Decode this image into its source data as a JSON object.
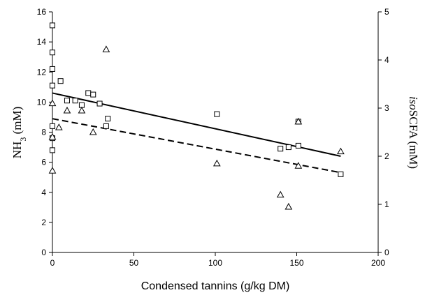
{
  "chart_data": {
    "type": "scatter",
    "xlabel": "Condensed tannins (g/kg DM)",
    "ylabel": {
      "main": "NH",
      "sub": "3",
      "rest": " (mM)"
    },
    "y2label": {
      "italic": "iso",
      "rest": "SCFA (mM)"
    },
    "xlim": [
      0,
      200
    ],
    "ylim": [
      0,
      16
    ],
    "y2lim": [
      0,
      5
    ],
    "xticks": [
      0,
      50,
      100,
      150,
      200
    ],
    "yticks": [
      0,
      2,
      4,
      6,
      8,
      10,
      12,
      14,
      16
    ],
    "y2ticks": [
      0,
      1,
      2,
      3,
      4,
      5
    ],
    "grid": false,
    "series": [
      {
        "marker": "square",
        "axis": "left",
        "points": [
          [
            0,
            15.1
          ],
          [
            0,
            13.3
          ],
          [
            0,
            12.2
          ],
          [
            0,
            11.1
          ],
          [
            0,
            8.4
          ],
          [
            0,
            7.6
          ],
          [
            0,
            6.8
          ],
          [
            5,
            11.4
          ],
          [
            9,
            10.1
          ],
          [
            14,
            10.1
          ],
          [
            18,
            9.8
          ],
          [
            22,
            10.6
          ],
          [
            25,
            10.5
          ],
          [
            29,
            9.9
          ],
          [
            33,
            8.4
          ],
          [
            34,
            8.9
          ],
          [
            101,
            9.2
          ],
          [
            140,
            6.9
          ],
          [
            145,
            7.0
          ],
          [
            151,
            7.1
          ],
          [
            151,
            8.7
          ],
          [
            177,
            5.2
          ]
        ],
        "trend": {
          "style": "solid",
          "x": [
            0,
            177
          ],
          "y": [
            10.6,
            6.4
          ]
        }
      },
      {
        "marker": "triangle",
        "axis": "right",
        "points": [
          [
            0,
            3.1
          ],
          [
            0,
            2.4
          ],
          [
            0,
            1.7
          ],
          [
            4,
            2.6
          ],
          [
            9,
            2.95
          ],
          [
            18,
            2.95
          ],
          [
            25,
            2.5
          ],
          [
            33,
            4.22
          ],
          [
            101,
            1.85
          ],
          [
            140,
            1.2
          ],
          [
            145,
            0.95
          ],
          [
            151,
            2.72
          ],
          [
            151,
            1.8
          ],
          [
            177,
            2.1
          ]
        ],
        "trend": {
          "style": "dashed",
          "x": [
            0,
            177
          ],
          "y": [
            2.78,
            1.66
          ]
        }
      }
    ]
  }
}
